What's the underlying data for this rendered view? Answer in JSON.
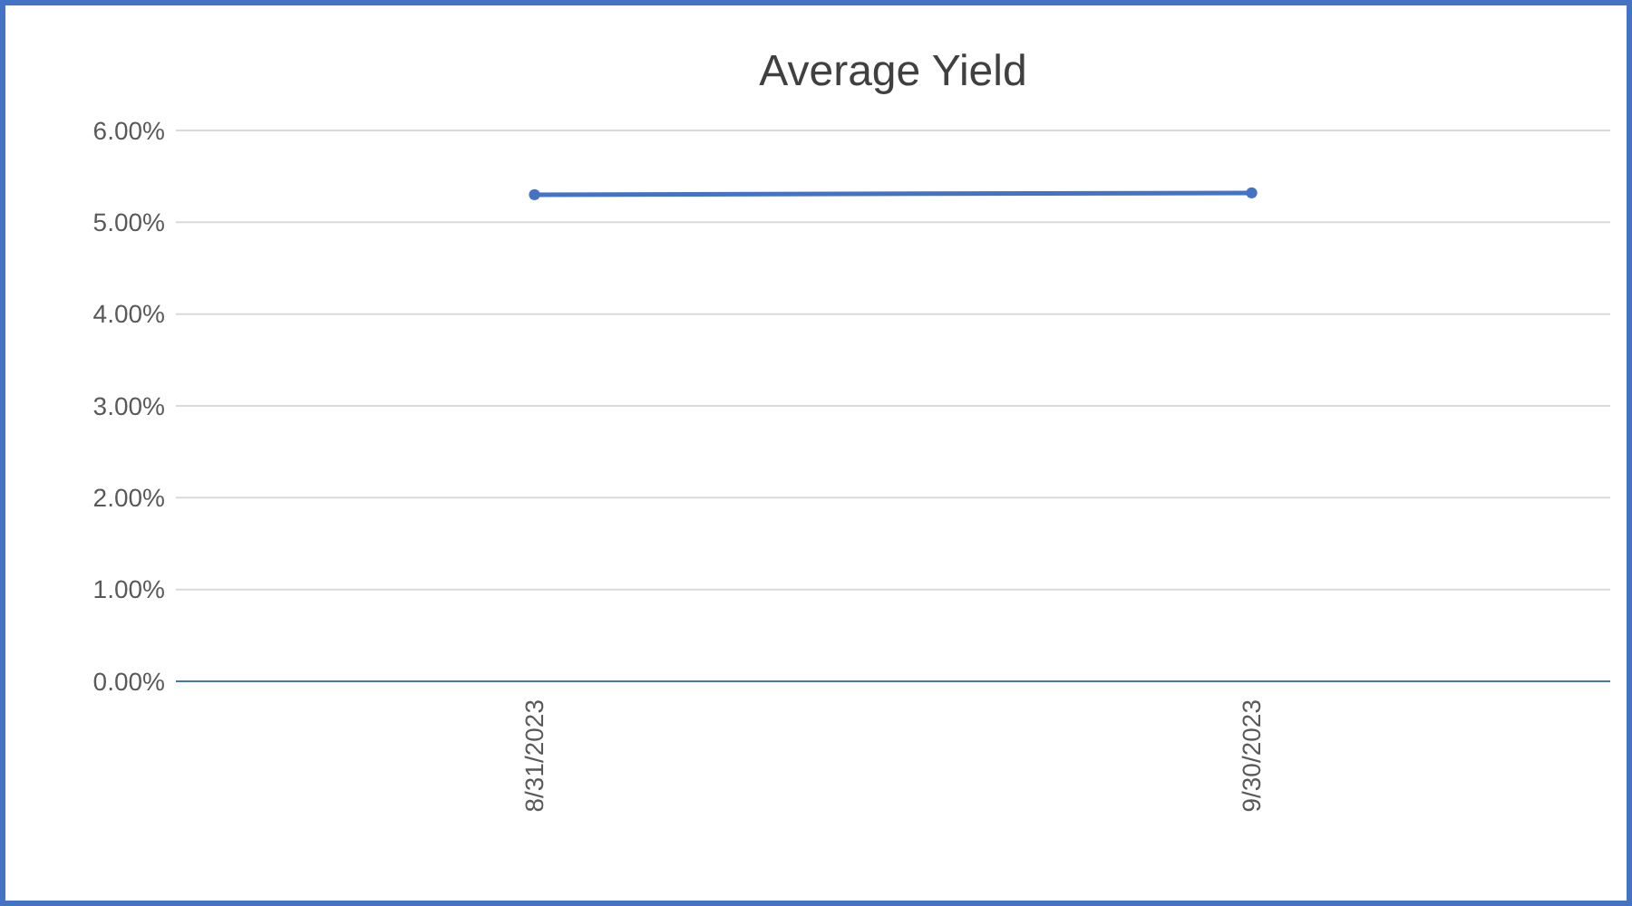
{
  "chart_data": {
    "type": "line",
    "title": "Average Yield",
    "categories": [
      "8/31/2023",
      "9/30/2023"
    ],
    "series": [
      {
        "color": "#4472c4",
        "values": [
          5.3,
          5.32
        ]
      }
    ],
    "ylim": [
      0,
      6
    ],
    "yticks": [
      {
        "value": 0,
        "label": "0.00%"
      },
      {
        "value": 1,
        "label": "1.00%"
      },
      {
        "value": 2,
        "label": "2.00%"
      },
      {
        "value": 3,
        "label": "3.00%"
      },
      {
        "value": 4,
        "label": "4.00%"
      },
      {
        "value": 5,
        "label": "5.00%"
      },
      {
        "value": 6,
        "label": "6.00%"
      }
    ],
    "grid": "y",
    "marker": "circle"
  }
}
